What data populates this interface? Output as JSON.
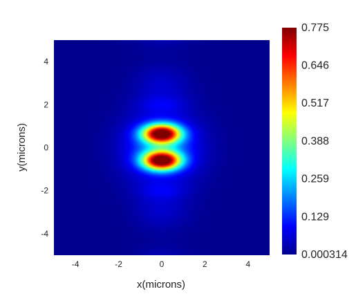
{
  "chart_data": {
    "type": "heatmap",
    "title": "",
    "xlabel": "x(microns)",
    "ylabel": "y(microns)",
    "xlim": [
      -5,
      5
    ],
    "ylim": [
      -5,
      5
    ],
    "x_ticks": [
      "-4",
      "-2",
      "0",
      "2",
      "4"
    ],
    "y_ticks": [
      "-4",
      "-2",
      "0",
      "2",
      "4"
    ],
    "colorscale": "jet",
    "zlim": [
      0.000314,
      0.775
    ],
    "colorbar_ticks": [
      "0.775",
      "0.646",
      "0.517",
      "0.388",
      "0.259",
      "0.129",
      "0.000314"
    ],
    "peaks": [
      {
        "x": 0,
        "y": 0.65,
        "value": 0.775
      },
      {
        "x": 0,
        "y": -0.6,
        "value": 0.775
      }
    ],
    "grid": false
  }
}
